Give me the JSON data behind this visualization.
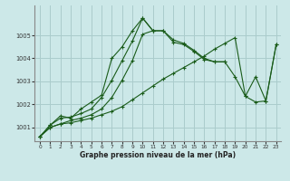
{
  "title": "Graphe pression niveau de la mer (hPa)",
  "background_color": "#cce8e8",
  "grid_color": "#aacccc",
  "line_color": "#1a5c1a",
  "xlim": [
    -0.5,
    23.5
  ],
  "ylim": [
    1000.4,
    1006.3
  ],
  "yticks": [
    1001,
    1002,
    1003,
    1004,
    1005
  ],
  "xticks": [
    0,
    1,
    2,
    3,
    4,
    5,
    6,
    7,
    8,
    9,
    10,
    11,
    12,
    13,
    14,
    15,
    16,
    17,
    18,
    19,
    20,
    21,
    22,
    23
  ],
  "series": [
    [
      1000.6,
      1001.0,
      1001.15,
      1001.2,
      1001.3,
      1001.4,
      1001.55,
      1001.7,
      1001.9,
      1002.2,
      1002.5,
      1002.8,
      1003.1,
      1003.35,
      1003.6,
      1003.85,
      1004.1,
      1004.4,
      1004.65,
      1004.9,
      1002.35,
      1003.2,
      1002.15,
      1004.6
    ],
    [
      1000.6,
      1001.0,
      1001.15,
      1001.3,
      1001.4,
      1001.55,
      1001.8,
      1002.3,
      1003.05,
      1003.9,
      1005.05,
      1005.2,
      1005.2,
      1004.8,
      1004.65,
      1004.35,
      1004.0,
      1003.85,
      1003.85,
      1003.2,
      1002.35,
      1002.1,
      1002.15,
      1004.6
    ],
    [
      1000.6,
      1001.1,
      1001.4,
      1001.45,
      1001.6,
      1001.8,
      1002.3,
      1003.05,
      1003.9,
      1004.75,
      1005.75,
      1005.2,
      1005.2,
      1004.7,
      1004.6,
      1004.3,
      1003.95,
      1003.85,
      1003.85,
      null,
      null,
      null,
      null,
      null
    ],
    [
      1000.6,
      1001.1,
      1001.5,
      1001.4,
      1001.8,
      1002.1,
      1002.4,
      1004.0,
      1004.5,
      1005.2,
      1005.75,
      1005.2,
      null,
      null,
      null,
      null,
      null,
      null,
      null,
      null,
      null,
      null,
      null,
      null
    ]
  ]
}
